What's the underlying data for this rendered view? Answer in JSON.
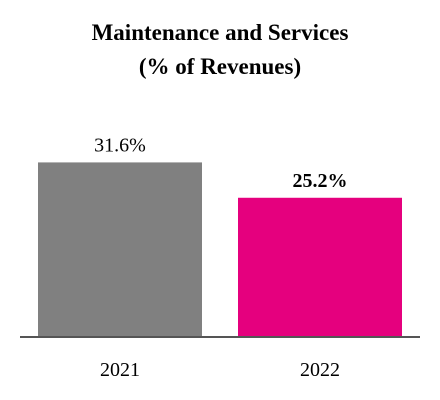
{
  "chart_data": {
    "type": "bar",
    "title": "Maintenance and Services",
    "subtitle": "(% of Revenues)",
    "categories": [
      "2021",
      "2022"
    ],
    "values": [
      31.6,
      25.2
    ],
    "data_labels": [
      "31.6%",
      "25.2%"
    ],
    "bar_colors": [
      "#808080",
      "#e5007e"
    ],
    "bold_labels": [
      false,
      true
    ],
    "ylim": [
      0,
      40
    ],
    "grid": false,
    "axis_color": "#555555"
  }
}
